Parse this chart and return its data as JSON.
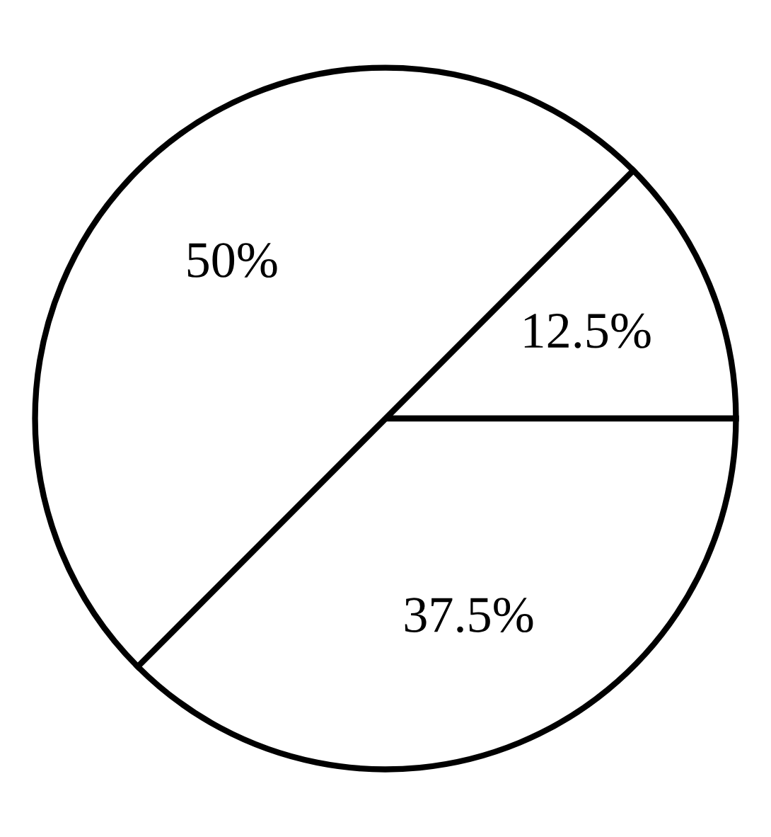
{
  "chart_data": {
    "type": "pie",
    "categories": [
      null,
      null,
      null
    ],
    "values": [
      12.5,
      37.5,
      50
    ],
    "value_labels": [
      "12.5%",
      "37.5%",
      "50%"
    ],
    "colors": [
      "#ffffff",
      "#ffffff",
      "#ffffff"
    ]
  }
}
